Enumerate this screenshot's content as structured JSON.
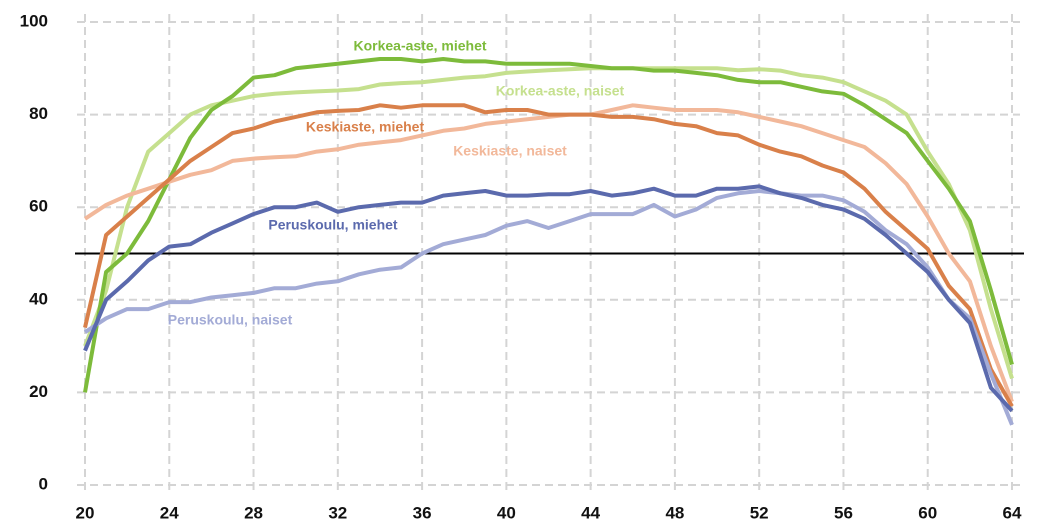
{
  "chart_data": {
    "type": "line",
    "x": [
      20,
      21,
      22,
      23,
      24,
      25,
      26,
      27,
      28,
      29,
      30,
      31,
      32,
      33,
      34,
      35,
      36,
      37,
      38,
      39,
      40,
      41,
      42,
      43,
      44,
      45,
      46,
      47,
      48,
      49,
      50,
      51,
      52,
      53,
      54,
      55,
      56,
      57,
      58,
      59,
      60,
      61,
      62,
      63,
      64
    ],
    "xlim": [
      20,
      64
    ],
    "xticks": [
      20,
      24,
      28,
      32,
      36,
      40,
      44,
      48,
      52,
      56,
      60,
      64
    ],
    "ylim": [
      0,
      100
    ],
    "yticks": [
      0,
      20,
      40,
      60,
      80,
      100
    ],
    "grid": true,
    "hline": 50,
    "series": [
      {
        "name": "Korkea-aste, naiset",
        "color": "#c5e08e",
        "values": [
          30,
          42,
          60,
          72,
          76,
          80,
          82,
          83,
          84,
          84.5,
          84.8,
          85,
          85.2,
          85.5,
          86.5,
          86.8,
          87,
          87.5,
          88,
          88.3,
          89,
          89.3,
          89.6,
          89.8,
          90,
          90,
          90,
          90,
          90,
          90,
          90,
          89.6,
          89.8,
          89.5,
          88.5,
          88,
          87,
          85,
          83,
          80,
          72,
          65,
          55,
          38,
          23
        ]
      },
      {
        "name": "Korkea-aste, miehet",
        "color": "#7dbb3b",
        "values": [
          20,
          46,
          50,
          57,
          66,
          75,
          81,
          84,
          88,
          88.5,
          90,
          90.5,
          91,
          91.5,
          92,
          92,
          91.5,
          92,
          91.5,
          91.5,
          91,
          91,
          91,
          91,
          90.5,
          90,
          90,
          89.5,
          89.5,
          89,
          88.5,
          87.5,
          87,
          87,
          86,
          85,
          84.5,
          82,
          79,
          76,
          70,
          64,
          57,
          42,
          26
        ]
      },
      {
        "name": "Keskiaste, naiset",
        "color": "#f2b89a",
        "values": [
          57.5,
          60.5,
          62.5,
          64,
          65.5,
          67,
          68,
          70,
          70.5,
          70.8,
          71,
          72,
          72.5,
          73.5,
          74,
          74.5,
          75.5,
          76.5,
          77,
          78,
          78.5,
          79,
          79.5,
          80,
          80,
          81,
          82,
          81.5,
          81,
          81,
          81,
          80.5,
          79.5,
          78.5,
          77.5,
          76,
          74.5,
          73,
          69.5,
          65,
          58,
          50,
          44,
          30,
          18
        ]
      },
      {
        "name": "Keskiaste, miehet",
        "color": "#d9804a",
        "values": [
          34,
          54,
          58,
          62,
          66,
          70,
          73,
          76,
          77,
          78.5,
          79.5,
          80.5,
          80.8,
          81,
          82,
          81.5,
          82,
          82,
          82,
          80.5,
          81,
          81,
          80,
          80,
          80,
          79.5,
          79.5,
          79,
          78,
          77.5,
          76,
          75.5,
          73.5,
          72,
          71,
          69,
          67.5,
          64,
          59,
          55,
          51,
          43,
          38,
          25,
          17
        ]
      },
      {
        "name": "Peruskoulu, naiset",
        "color": "#a3abd6",
        "values": [
          33,
          36,
          38,
          38,
          39.5,
          39.5,
          40.5,
          41,
          41.5,
          42.5,
          42.5,
          43.5,
          44,
          45.5,
          46.5,
          47,
          50,
          52,
          53,
          54,
          56,
          57,
          55.5,
          57,
          58.5,
          58.5,
          58.5,
          60.5,
          58,
          59.5,
          62,
          63,
          63.5,
          63,
          62.5,
          62.5,
          61.5,
          59,
          55,
          52,
          47,
          40,
          36,
          24,
          13
        ]
      },
      {
        "name": "Peruskoulu, miehet",
        "color": "#5b6aad",
        "values": [
          29,
          40,
          44,
          48.5,
          51.5,
          52,
          54.5,
          56.5,
          58.5,
          60,
          60,
          61,
          59,
          60,
          60.5,
          61,
          61,
          62.5,
          63,
          63.5,
          62.5,
          62.5,
          62.8,
          62.8,
          63.5,
          62.5,
          63,
          64,
          62.5,
          62.5,
          64,
          64,
          64.5,
          63,
          62,
          60.5,
          59.5,
          57.5,
          54,
          50,
          46,
          40,
          35,
          21,
          16
        ]
      }
    ]
  }
}
